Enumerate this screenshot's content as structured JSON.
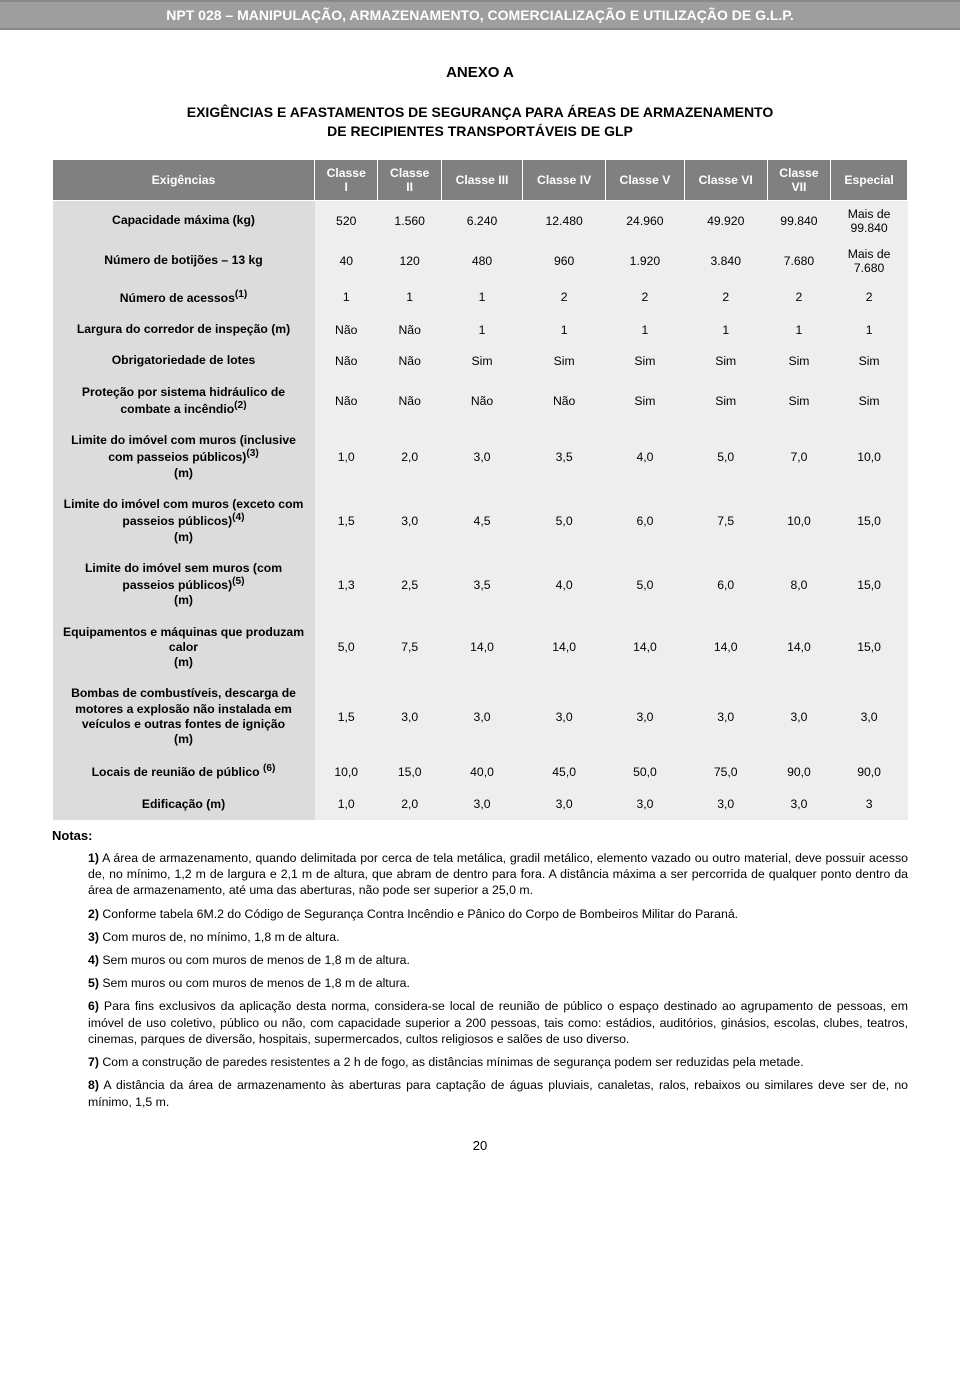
{
  "header": {
    "title": "NPT 028 – MANIPULAÇÃO, ARMAZENAMENTO, COMERCIALIZAÇÃO E UTILIZAÇÃO DE G.L.P."
  },
  "anexo": {
    "title": "ANEXO A",
    "subtitle_line1": "EXIGÊNCIAS E AFASTAMENTOS DE SEGURANÇA PARA ÁREAS DE ARMAZENAMENTO",
    "subtitle_line2": "DE RECIPIENTES TRANSPORTÁVEIS DE GLP"
  },
  "table": {
    "columns": [
      "Exigências",
      "Classe I",
      "Classe II",
      "Classe III",
      "Classe IV",
      "Classe V",
      "Classe VI",
      "Classe VII",
      "Especial"
    ],
    "header_bg": "#808080",
    "label_bg": "#dcdcdc",
    "cell_bg": "#eeeeee",
    "rows": [
      {
        "label": "Capacidade máxima (kg)",
        "values": [
          "520",
          "1.560",
          "6.240",
          "12.480",
          "24.960",
          "49.920",
          "99.840",
          "Mais de 99.840"
        ]
      },
      {
        "label": "Número de botijões – 13 kg",
        "values": [
          "40",
          "120",
          "480",
          "960",
          "1.920",
          "3.840",
          "7.680",
          "Mais de 7.680"
        ]
      },
      {
        "label": "Número de acessos(1)",
        "sup": "(1)",
        "label_plain": "Número de acessos",
        "values": [
          "1",
          "1",
          "1",
          "2",
          "2",
          "2",
          "2",
          "2"
        ]
      },
      {
        "label": "Largura do corredor de inspeção (m)",
        "values": [
          "Não",
          "Não",
          "1",
          "1",
          "1",
          "1",
          "1",
          "1"
        ]
      },
      {
        "label": "Obrigatoriedade de lotes",
        "values": [
          "Não",
          "Não",
          "Sim",
          "Sim",
          "Sim",
          "Sim",
          "Sim",
          "Sim"
        ]
      },
      {
        "label": "Proteção por sistema hidráulico de combate a incêndio",
        "sup": "(2)",
        "values": [
          "Não",
          "Não",
          "Não",
          "Não",
          "Sim",
          "Sim",
          "Sim",
          "Sim"
        ]
      },
      {
        "label": "Limite do imóvel com muros (inclusive com passeios públicos)",
        "sup": "(3)",
        "suffix": " (m)",
        "values": [
          "1,0",
          "2,0",
          "3,0",
          "3,5",
          "4,0",
          "5,0",
          "7,0",
          "10,0"
        ]
      },
      {
        "label": "Limite do imóvel com muros (exceto com passeios públicos)",
        "sup": "(4)",
        "suffix": " (m)",
        "values": [
          "1,5",
          "3,0",
          "4,5",
          "5,0",
          "6,0",
          "7,5",
          "10,0",
          "15,0"
        ]
      },
      {
        "label": "Limite do imóvel sem muros (com passeios públicos)",
        "sup": "(5)",
        "suffix": " (m)",
        "values": [
          "1,3",
          "2,5",
          "3,5",
          "4,0",
          "5,0",
          "6,0",
          "8,0",
          "15,0"
        ]
      },
      {
        "label": "Equipamentos e máquinas que produzam calor (m)",
        "values": [
          "5,0",
          "7,5",
          "14,0",
          "14,0",
          "14,0",
          "14,0",
          "14,0",
          "15,0"
        ]
      },
      {
        "label": "Bombas de combustíveis, descarga de motores a explosão não instalada em veículos e outras fontes de ignição (m)",
        "values": [
          "1,5",
          "3,0",
          "3,0",
          "3,0",
          "3,0",
          "3,0",
          "3,0",
          "3,0"
        ]
      },
      {
        "label": "Locais de reunião de público ",
        "sup": "(6)",
        "values": [
          "10,0",
          "15,0",
          "40,0",
          "45,0",
          "50,0",
          "75,0",
          "90,0",
          "90,0"
        ]
      },
      {
        "label": "Edificação (m)",
        "values": [
          "1,0",
          "2,0",
          "3,0",
          "3,0",
          "3,0",
          "3,0",
          "3,0",
          "3"
        ]
      }
    ]
  },
  "notas": {
    "title": "Notas:",
    "items": [
      {
        "n": "1)",
        "text": " A área de armazenamento, quando delimitada por cerca de tela metálica, gradil metálico, elemento vazado ou outro material, deve possuir acesso de, no mínimo, 1,2 m de largura e 2,1 m de altura, que abram de dentro para fora. A distância máxima a ser percorrida de qualquer ponto dentro da área de armazenamento, até uma das aberturas, não pode ser superior a 25,0 m."
      },
      {
        "n": "2)",
        "text": " Conforme tabela 6M.2 do Código de Segurança Contra Incêndio e Pânico do Corpo de Bombeiros Militar do Paraná."
      },
      {
        "n": "3)",
        "text": " Com muros de, no mínimo, 1,8 m de altura."
      },
      {
        "n": "4)",
        "text": " Sem muros ou com muros de menos de 1,8 m de altura."
      },
      {
        "n": "5)",
        "text": " Sem muros ou com muros de menos de 1,8 m de altura."
      },
      {
        "n": "6)",
        "text": " Para fins exclusivos da aplicação desta norma, considera-se local de reunião de público o espaço destinado ao agrupamento de pessoas, em imóvel de uso coletivo, público ou não, com capacidade superior a 200 pessoas, tais como: estádios, auditórios, ginásios, escolas, clubes, teatros, cinemas, parques de diversão, hospitais, supermercados, cultos religiosos e salões de uso diverso."
      },
      {
        "n": "7)",
        "text": " Com a construção de paredes resistentes a 2 h de fogo, as distâncias mínimas de segurança podem ser reduzidas pela metade."
      },
      {
        "n": "8)",
        "text": " A distância da área de armazenamento às aberturas para captação de águas pluviais, canaletas, ralos, rebaixos ou similares deve ser de, no mínimo, 1,5 m."
      }
    ]
  },
  "page_number": "20"
}
